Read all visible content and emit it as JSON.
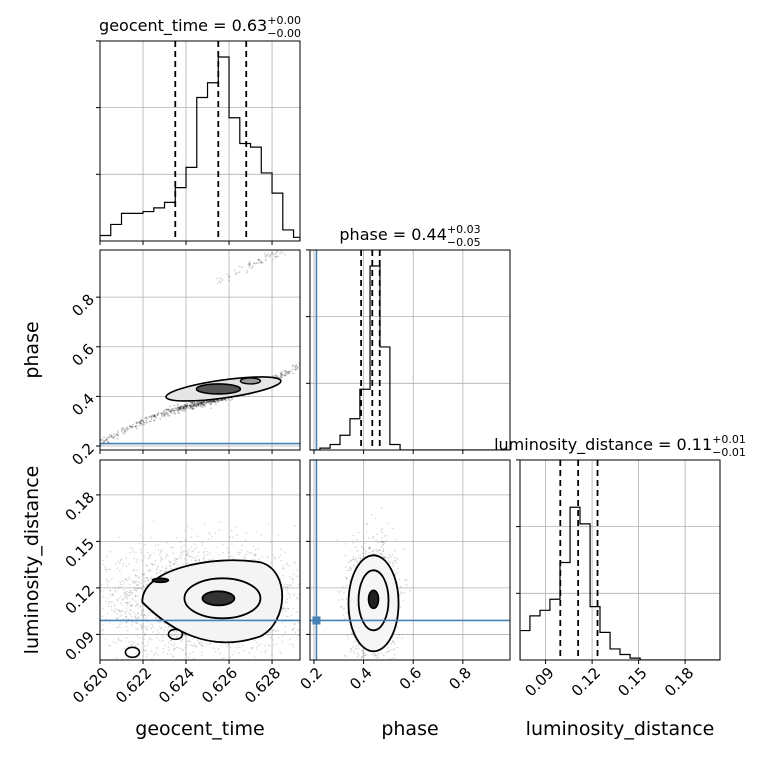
{
  "chart_data": {
    "type": "corner",
    "params": [
      "geocent_time",
      "phase",
      "luminosity_distance"
    ],
    "axis_labels": {
      "geocent_time": "geocent_time",
      "phase": "phase",
      "luminosity_distance": "luminosity_distance"
    },
    "ranges": {
      "geocent_time": [
        0.62,
        0.6293
      ],
      "phase": [
        0.184,
        0.99
      ],
      "luminosity_distance": [
        0.0735,
        0.2025
      ]
    },
    "ticks": {
      "geocent_time": {
        "values": [
          0.62,
          0.622,
          0.624,
          0.626,
          0.628
        ],
        "labels": [
          "0.620",
          "0.622",
          "0.624",
          "0.626",
          "0.628"
        ]
      },
      "phase": {
        "values": [
          0.2,
          0.4,
          0.6,
          0.8
        ],
        "labels": [
          "0.2",
          "0.4",
          "0.6",
          "0.8"
        ]
      },
      "luminosity_distance": {
        "values": [
          0.09,
          0.12,
          0.15,
          0.18
        ],
        "labels": [
          "0.09",
          "0.12",
          "0.15",
          "0.18"
        ]
      }
    },
    "truths": {
      "phase": 0.21,
      "luminosity_distance": 0.099
    },
    "truth_color": "#4682b4",
    "marginals": [
      {
        "param": "geocent_time",
        "title_name": "geocent_time",
        "median": "0.63",
        "plus": "+0.00",
        "minus": "−0.00",
        "quantiles": [
          0.6235,
          0.6255,
          0.6268
        ],
        "bin_edges": [
          0.62,
          0.6205,
          0.621,
          0.6215,
          0.622,
          0.6225,
          0.623,
          0.6235,
          0.624,
          0.6245,
          0.625,
          0.6255,
          0.626,
          0.6265,
          0.627,
          0.6275,
          0.628,
          0.6285,
          0.629,
          0.6293
        ],
        "counts": [
          0.03,
          0.09,
          0.15,
          0.15,
          0.16,
          0.18,
          0.21,
          0.29,
          0.4,
          0.78,
          0.86,
          1.0,
          0.67,
          0.53,
          0.51,
          0.37,
          0.26,
          0.06,
          0.02
        ]
      },
      {
        "param": "phase",
        "title_name": "phase",
        "median": "0.44",
        "plus": "+0.03",
        "minus": "−0.05",
        "quantiles": [
          0.39,
          0.435,
          0.465
        ],
        "bin_edges": [
          0.184,
          0.224,
          0.265,
          0.305,
          0.345,
          0.385,
          0.426,
          0.466,
          0.506,
          0.547,
          0.587,
          0.627,
          0.668,
          0.708,
          0.748,
          0.789,
          0.829,
          0.869,
          0.909,
          0.95,
          0.99
        ],
        "counts": [
          0,
          0.01,
          0.03,
          0.08,
          0.17,
          0.33,
          1.0,
          0.56,
          0.03,
          0.0,
          0.0,
          0.0,
          0.0,
          0.0,
          0.0,
          0.0,
          0.0,
          0.0,
          0.0,
          0.0
        ]
      },
      {
        "param": "luminosity_distance",
        "title_name": "luminosity_distance",
        "median": "0.11",
        "plus": "+0.01",
        "minus": "−0.01",
        "quantiles": [
          0.0995,
          0.111,
          0.1235
        ],
        "bin_edges": [
          0.0735,
          0.0799,
          0.0864,
          0.0928,
          0.0993,
          0.1058,
          0.1122,
          0.1187,
          0.1251,
          0.1316,
          0.138,
          0.1445,
          0.151,
          0.1574,
          0.1639,
          0.1703,
          0.1768,
          0.1832,
          0.1897,
          0.1961,
          0.2025
        ],
        "counts": [
          0.16,
          0.24,
          0.27,
          0.33,
          0.53,
          0.83,
          0.74,
          0.29,
          0.15,
          0.06,
          0.03,
          0.01,
          0.0,
          0.0,
          0.0,
          0.0,
          0.0,
          0.0,
          0.0,
          0.0
        ]
      }
    ],
    "pairs": [
      {
        "x": "geocent_time",
        "y": "phase",
        "blob_center": [
          0.6256,
          0.43
        ]
      },
      {
        "x": "geocent_time",
        "y": "luminosity_distance",
        "blob_center": [
          0.6256,
          0.112
        ]
      },
      {
        "x": "phase",
        "y": "luminosity_distance",
        "blob_center": [
          0.44,
          0.112
        ]
      }
    ],
    "grid": true
  }
}
